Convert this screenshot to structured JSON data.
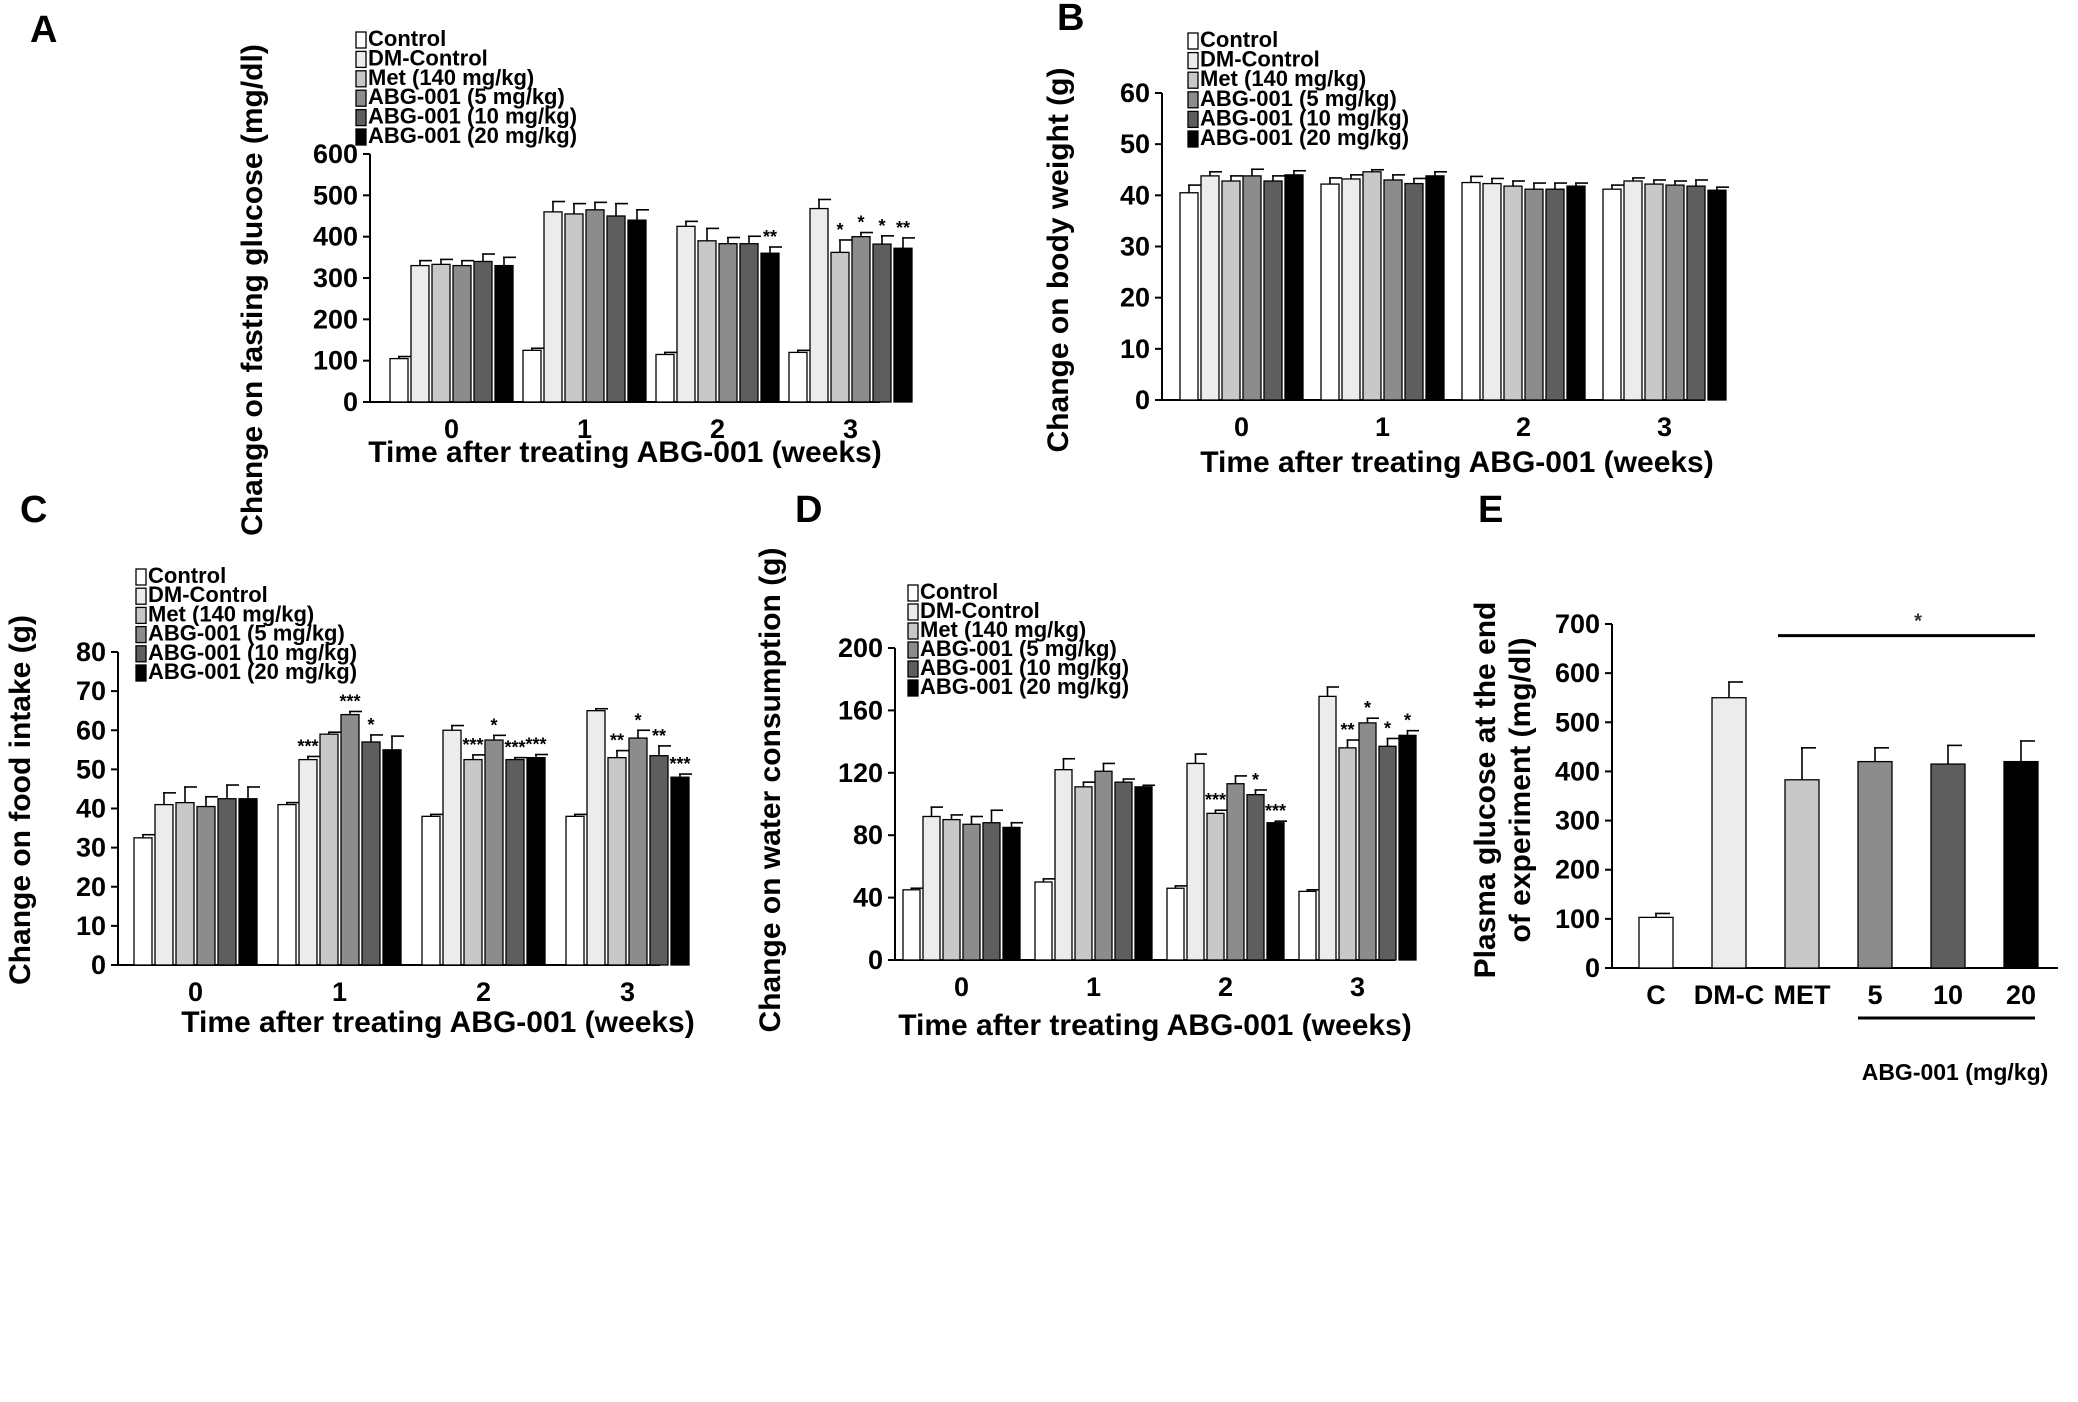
{
  "legend": [
    {
      "label": "Control",
      "color": "#ffffff"
    },
    {
      "label": "DM-Control",
      "color": "#ececec"
    },
    {
      "label": "Met (140 mg/kg)",
      "color": "#c8c8c8"
    },
    {
      "label": "ABG-001 (5 mg/kg)",
      "color": "#8c8c8c"
    },
    {
      "label": "ABG-001 (10 mg/kg)",
      "color": "#5e5e5e"
    },
    {
      "label": "ABG-001 (20 mg/kg)",
      "color": "#000000"
    }
  ],
  "chart_data": [
    {
      "panel": "A",
      "type": "bar",
      "xlabel": "Time after treating ABG-001 (weeks)",
      "ylabel": "Change on fasting glucose (mg/dl)",
      "ylim": [
        0,
        600
      ],
      "yticks": [
        0,
        100,
        200,
        300,
        400,
        500,
        600
      ],
      "categories": [
        "0",
        "1",
        "2",
        "3"
      ],
      "series": [
        {
          "name": "Control",
          "values": [
            105,
            125,
            115,
            120
          ],
          "errors": [
            5,
            5,
            5,
            5
          ]
        },
        {
          "name": "DM-Control",
          "values": [
            330,
            460,
            425,
            468
          ],
          "errors": [
            12,
            25,
            12,
            22
          ]
        },
        {
          "name": "Met (140 mg/kg)",
          "values": [
            333,
            455,
            390,
            362
          ],
          "errors": [
            12,
            25,
            30,
            30
          ]
        },
        {
          "name": "ABG-001 (5 mg/kg)",
          "values": [
            330,
            465,
            383,
            400
          ],
          "errors": [
            12,
            18,
            15,
            10
          ]
        },
        {
          "name": "ABG-001 (10 mg/kg)",
          "values": [
            340,
            450,
            383,
            382
          ],
          "errors": [
            18,
            30,
            18,
            20
          ]
        },
        {
          "name": "ABG-001 (20 mg/kg)",
          "values": [
            330,
            440,
            360,
            372
          ],
          "errors": [
            20,
            25,
            15,
            25
          ]
        }
      ],
      "annotations": [
        {
          "category": "2",
          "series": "ABG-001 (20 mg/kg)",
          "text": "**"
        },
        {
          "category": "3",
          "series": "Met (140 mg/kg)",
          "text": "*"
        },
        {
          "category": "3",
          "series": "ABG-001 (5 mg/kg)",
          "text": "*"
        },
        {
          "category": "3",
          "series": "ABG-001 (10 mg/kg)",
          "text": "*"
        },
        {
          "category": "3",
          "series": "ABG-001 (20 mg/kg)",
          "text": "**"
        }
      ]
    },
    {
      "panel": "B",
      "type": "bar",
      "xlabel": "Time after treating ABG-001 (weeks)",
      "ylabel": "Change on body weight (g)",
      "ylim": [
        0,
        60
      ],
      "yticks": [
        0,
        10,
        20,
        30,
        40,
        50,
        60
      ],
      "categories": [
        "0",
        "1",
        "2",
        "3"
      ],
      "series": [
        {
          "name": "Control",
          "values": [
            40.5,
            42.2,
            42.5,
            41.2
          ],
          "errors": [
            1.5,
            1.2,
            1.2,
            0.8
          ]
        },
        {
          "name": "DM-Control",
          "values": [
            43.8,
            43.2,
            42.3,
            42.8
          ],
          "errors": [
            0.8,
            0.8,
            1.0,
            0.6
          ]
        },
        {
          "name": "Met (140 mg/kg)",
          "values": [
            42.8,
            44.6,
            41.8,
            42.2
          ],
          "errors": [
            1.0,
            0.4,
            1.0,
            0.8
          ]
        },
        {
          "name": "ABG-001 (5 mg/kg)",
          "values": [
            43.8,
            43.0,
            41.2,
            42.0
          ],
          "errors": [
            1.3,
            1.0,
            1.2,
            0.8
          ]
        },
        {
          "name": "ABG-001 (10 mg/kg)",
          "values": [
            42.8,
            42.3,
            41.2,
            41.8
          ],
          "errors": [
            1.0,
            1.0,
            1.2,
            1.2
          ]
        },
        {
          "name": "ABG-001 (20 mg/kg)",
          "values": [
            44.0,
            43.8,
            41.8,
            41.0
          ],
          "errors": [
            0.8,
            0.8,
            0.6,
            0.6
          ]
        }
      ]
    },
    {
      "panel": "C",
      "type": "bar",
      "xlabel": "Time after treating ABG-001 (weeks)",
      "ylabel": "Change on food intake (g)",
      "ylim": [
        0,
        80
      ],
      "yticks": [
        0,
        10,
        20,
        30,
        40,
        50,
        60,
        70,
        80
      ],
      "categories": [
        "0",
        "1",
        "2",
        "3"
      ],
      "series": [
        {
          "name": "Control",
          "values": [
            32.5,
            41,
            38,
            38
          ],
          "errors": [
            0.8,
            0.5,
            0.5,
            0.5
          ]
        },
        {
          "name": "DM-Control",
          "values": [
            41,
            52.5,
            60,
            65
          ],
          "errors": [
            3,
            0.8,
            1.2,
            0.5
          ]
        },
        {
          "name": "Met (140 mg/kg)",
          "values": [
            41.5,
            59,
            52.5,
            53
          ],
          "errors": [
            4,
            0.5,
            1.2,
            1.8
          ]
        },
        {
          "name": "ABG-001 (5 mg/kg)",
          "values": [
            40.5,
            64,
            57.5,
            58
          ],
          "errors": [
            2.5,
            0.8,
            1.2,
            2
          ]
        },
        {
          "name": "ABG-001 (10 mg/kg)",
          "values": [
            42.5,
            57,
            52.5,
            53.5
          ],
          "errors": [
            3.5,
            1.8,
            0.5,
            2.5
          ]
        },
        {
          "name": "ABG-001 (20 mg/kg)",
          "values": [
            42.5,
            55,
            53,
            48
          ],
          "errors": [
            3,
            3.5,
            0.8,
            0.8
          ]
        }
      ],
      "annotations": [
        {
          "category": "1",
          "series": "DM-Control",
          "text": "***"
        },
        {
          "category": "1",
          "series": "ABG-001 (5 mg/kg)",
          "text": "***"
        },
        {
          "category": "1",
          "series": "ABG-001 (10 mg/kg)",
          "text": "*"
        },
        {
          "category": "2",
          "series": "Met (140 mg/kg)",
          "text": "***"
        },
        {
          "category": "2",
          "series": "ABG-001 (5 mg/kg)",
          "text": "*"
        },
        {
          "category": "2",
          "series": "ABG-001 (10 mg/kg)",
          "text": "***"
        },
        {
          "category": "2",
          "series": "ABG-001 (20 mg/kg)",
          "text": "***"
        },
        {
          "category": "3",
          "series": "Met (140 mg/kg)",
          "text": "**"
        },
        {
          "category": "3",
          "series": "ABG-001 (5 mg/kg)",
          "text": "*"
        },
        {
          "category": "3",
          "series": "ABG-001 (10 mg/kg)",
          "text": "**"
        },
        {
          "category": "3",
          "series": "ABG-001 (20 mg/kg)",
          "text": "***"
        }
      ]
    },
    {
      "panel": "D",
      "type": "bar",
      "xlabel": "Time after treating ABG-001 (weeks)",
      "ylabel": "Change on water consumption (g)",
      "ylim": [
        0,
        200
      ],
      "yticks": [
        0,
        40,
        80,
        120,
        160,
        200
      ],
      "categories": [
        "0",
        "1",
        "2",
        "3"
      ],
      "series": [
        {
          "name": "Control",
          "values": [
            45,
            50,
            46,
            44
          ],
          "errors": [
            1,
            2,
            1.5,
            1
          ]
        },
        {
          "name": "DM-Control",
          "values": [
            92,
            122,
            126,
            169
          ],
          "errors": [
            6,
            7,
            6,
            6
          ]
        },
        {
          "name": "Met (140 mg/kg)",
          "values": [
            90,
            111,
            94,
            136
          ],
          "errors": [
            3,
            3,
            2,
            5
          ]
        },
        {
          "name": "ABG-001 (5 mg/kg)",
          "values": [
            87,
            121,
            113,
            152
          ],
          "errors": [
            5,
            5,
            5,
            3
          ]
        },
        {
          "name": "ABG-001 (10 mg/kg)",
          "values": [
            88,
            114,
            106,
            137
          ],
          "errors": [
            8,
            2,
            3,
            5
          ]
        },
        {
          "name": "ABG-001 (20 mg/kg)",
          "values": [
            85,
            111,
            88,
            144
          ],
          "errors": [
            3,
            1,
            1,
            3
          ]
        }
      ],
      "annotations": [
        {
          "category": "2",
          "series": "Met (140 mg/kg)",
          "text": "***"
        },
        {
          "category": "2",
          "series": "ABG-001 (10 mg/kg)",
          "text": "*"
        },
        {
          "category": "2",
          "series": "ABG-001 (20 mg/kg)",
          "text": "***"
        },
        {
          "category": "3",
          "series": "Met (140 mg/kg)",
          "text": "**"
        },
        {
          "category": "3",
          "series": "ABG-001 (5 mg/kg)",
          "text": "*"
        },
        {
          "category": "3",
          "series": "ABG-001 (10 mg/kg)",
          "text": "*"
        },
        {
          "category": "3",
          "series": "ABG-001 (20 mg/kg)",
          "text": "*"
        }
      ]
    },
    {
      "panel": "E",
      "type": "bar",
      "xlabel": "ABG-001  (mg/kg)",
      "ylabel": "Plasma glucose  at the end of experiment (mg/dl)",
      "ylabel_lines": [
        "Plasma glucose  at the end",
        "of experiment (mg/dl)"
      ],
      "ylim": [
        0,
        700
      ],
      "yticks": [
        0,
        100,
        200,
        300,
        400,
        500,
        600,
        700
      ],
      "categories": [
        "C",
        "DM-C",
        "MET",
        "5",
        "10",
        "20"
      ],
      "values": [
        103,
        550,
        383,
        420,
        415,
        420
      ],
      "errors": [
        8,
        32,
        65,
        28,
        38,
        42
      ],
      "colors": [
        "#ffffff",
        "#ececec",
        "#c8c8c8",
        "#8c8c8c",
        "#5e5e5e",
        "#000000"
      ],
      "significance": "*"
    }
  ]
}
